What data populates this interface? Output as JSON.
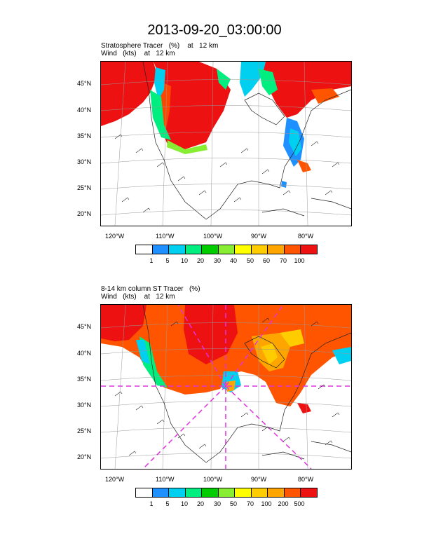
{
  "title": "2013-09-20_03:00:00",
  "panels": [
    {
      "subtitle_line1": "Stratosphere Tracer   (%)    at   12 km",
      "subtitle_line2": "Wind   (kts)    at   12 km",
      "colorbar_labels": [
        "1",
        "5",
        "10",
        "20",
        "30",
        "40",
        "50",
        "60",
        "70",
        "100"
      ]
    },
    {
      "subtitle_line1": "8-14 km column ST Tracer   (%)",
      "subtitle_line2": "Wind   (kts)    at   12 km",
      "colorbar_labels": [
        "1",
        "5",
        "10",
        "20",
        "30",
        "50",
        "70",
        "100",
        "200",
        "500"
      ]
    }
  ],
  "lat_labels": [
    "45°N",
    "40°N",
    "35°N",
    "30°N",
    "25°N",
    "20°N"
  ],
  "lon_labels": [
    "120°W",
    "110°W",
    "100°W",
    "90°W",
    "80°W"
  ],
  "colorbar_colors": [
    "#ffffff",
    "#1e90ff",
    "#00d0f0",
    "#00ee80",
    "#00cc00",
    "#88ee33",
    "#ffff00",
    "#ffcc00",
    "#ffa500",
    "#ff5500",
    "#ee1111"
  ]
}
